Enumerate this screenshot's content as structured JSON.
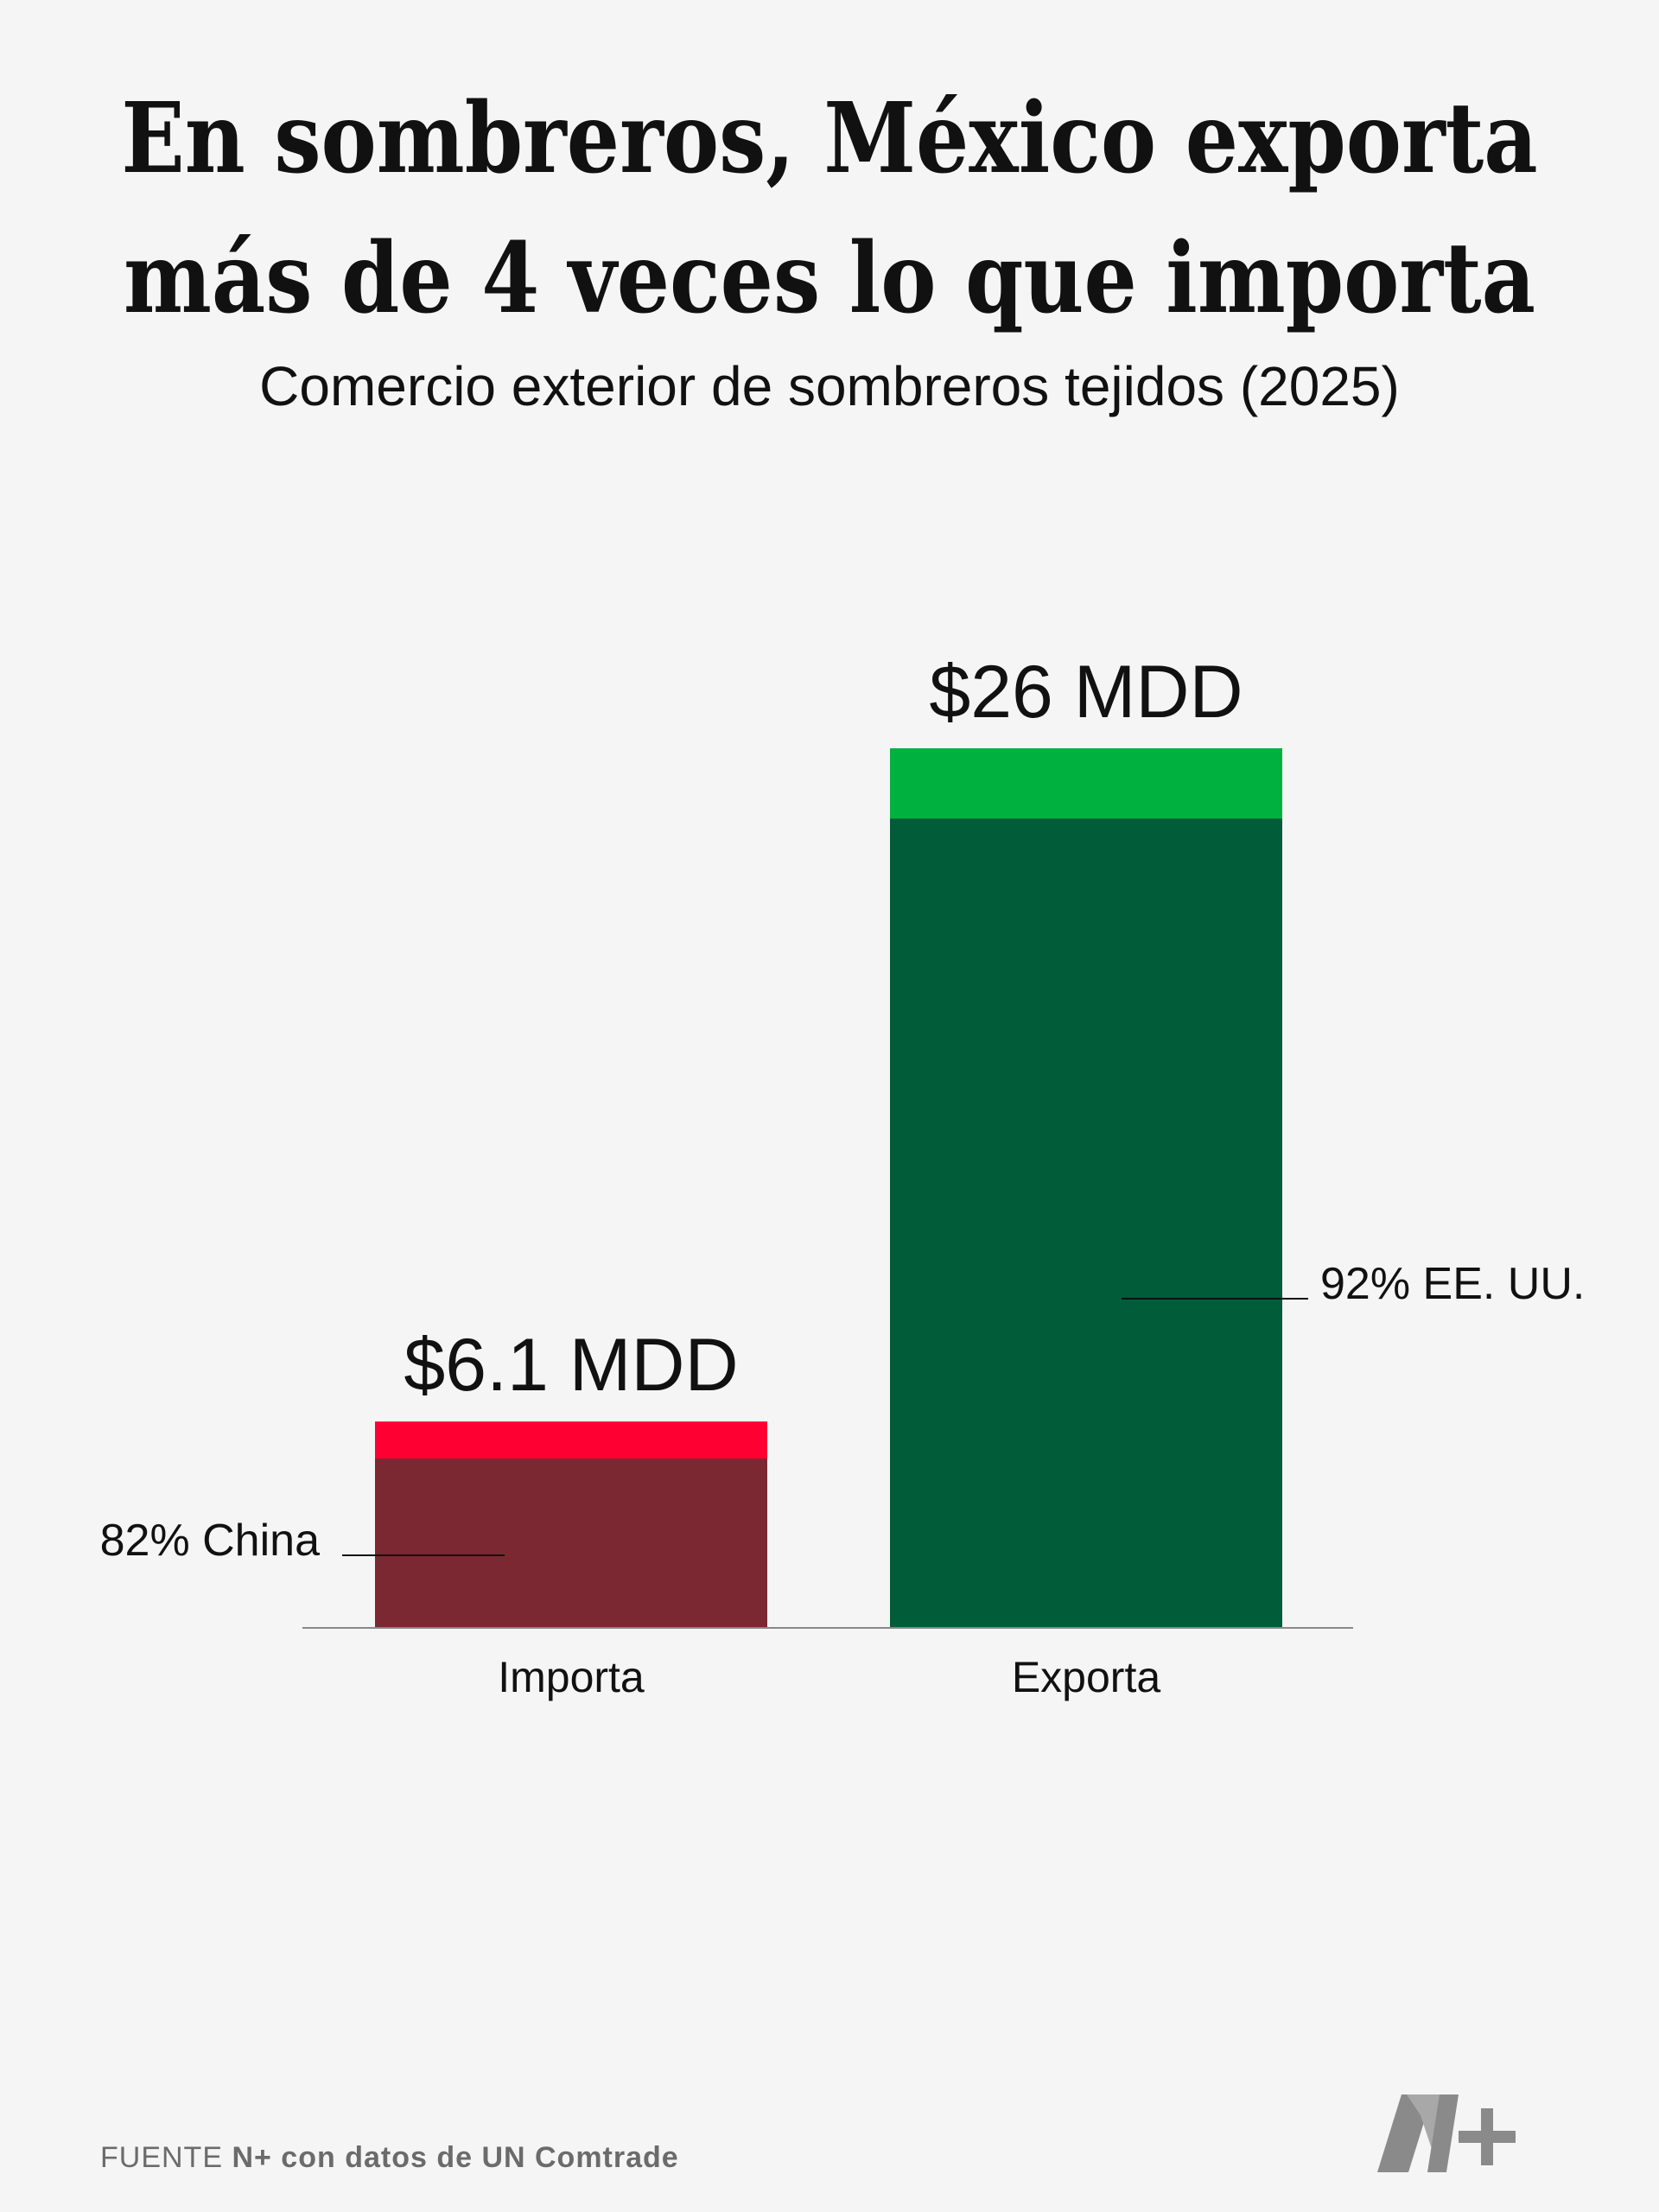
{
  "title_line1": "En sombreros, México exporta",
  "title_line2": "más de 4 veces lo que importa",
  "subtitle": "Comercio exterior de sombreros tejidos (2025)",
  "chart_data": {
    "type": "bar",
    "categories": [
      "Importa",
      "Exporta"
    ],
    "values": [
      6.1,
      26
    ],
    "value_labels": [
      "$6.1 MDD",
      "$26 MDD"
    ],
    "unit": "MDD",
    "main_share_percent": [
      82,
      92
    ],
    "annotations": [
      "82% China",
      "92% EE. UU."
    ],
    "colors": {
      "import_total": "#ff0033",
      "import_main": "#7b2832",
      "export_total": "#00b140",
      "export_main": "#005c39",
      "baseline": "#888888"
    }
  },
  "source_prefix": "FUENTE",
  "source_text": "N+ con datos de UN Comtrade",
  "logo_icon": "n-plus-logo-icon"
}
